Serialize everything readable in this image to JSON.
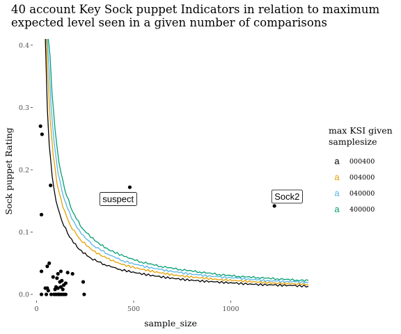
{
  "chart_data": {
    "type": "scatter",
    "title_lines": [
      "40 account Key Sock puppet Indicators in relation to maximum",
      "expected level seen in a given number of comparisons"
    ],
    "xlabel": "sample_size",
    "ylabel": "Sock puppet Rating",
    "xlim": [
      -20,
      1400
    ],
    "ylim": [
      -0.01,
      0.41
    ],
    "x_ticks": [
      0,
      500,
      1000
    ],
    "x_tick_labels": [
      "0",
      "500",
      "1000"
    ],
    "y_ticks": [
      0.0,
      0.1,
      0.2,
      0.3,
      0.4
    ],
    "y_tick_labels": [
      "0.0",
      "0.1",
      "0.2",
      "0.3",
      "0.4"
    ],
    "grid": false,
    "legend": {
      "title": "max KSI given samplesize",
      "position": "right",
      "key_glyph": "a",
      "entries": [
        {
          "label": "000400",
          "color": "#000000"
        },
        {
          "label": "004000",
          "color": "#E69F00"
        },
        {
          "label": "040000",
          "color": "#56B4E9"
        },
        {
          "label": "400000",
          "color": "#009E73"
        }
      ]
    },
    "points": [
      {
        "x": 20,
        "y": 0.27
      },
      {
        "x": 28,
        "y": 0.257
      },
      {
        "x": 72,
        "y": 0.175
      },
      {
        "x": 25,
        "y": 0.128
      },
      {
        "x": 25,
        "y": 0.037
      },
      {
        "x": 65,
        "y": 0.05
      },
      {
        "x": 55,
        "y": 0.045
      },
      {
        "x": 85,
        "y": 0.028
      },
      {
        "x": 105,
        "y": 0.026
      },
      {
        "x": 110,
        "y": 0.033
      },
      {
        "x": 125,
        "y": 0.037
      },
      {
        "x": 160,
        "y": 0.035
      },
      {
        "x": 185,
        "y": 0.033
      },
      {
        "x": 120,
        "y": 0.02
      },
      {
        "x": 130,
        "y": 0.022
      },
      {
        "x": 140,
        "y": 0.015
      },
      {
        "x": 150,
        "y": 0.018
      },
      {
        "x": 100,
        "y": 0.012
      },
      {
        "x": 95,
        "y": 0.008
      },
      {
        "x": 110,
        "y": 0.01
      },
      {
        "x": 125,
        "y": 0.012
      },
      {
        "x": 135,
        "y": 0.008
      },
      {
        "x": 45,
        "y": 0.01
      },
      {
        "x": 55,
        "y": 0.01
      },
      {
        "x": 60,
        "y": 0.006
      },
      {
        "x": 240,
        "y": 0.02
      },
      {
        "x": 25,
        "y": 0.0
      },
      {
        "x": 50,
        "y": 0.0
      },
      {
        "x": 75,
        "y": 0.0
      },
      {
        "x": 90,
        "y": 0.0
      },
      {
        "x": 100,
        "y": 0.0
      },
      {
        "x": 110,
        "y": 0.0
      },
      {
        "x": 115,
        "y": 0.0
      },
      {
        "x": 120,
        "y": 0.0
      },
      {
        "x": 130,
        "y": 0.0
      },
      {
        "x": 140,
        "y": 0.0
      },
      {
        "x": 150,
        "y": 0.0
      },
      {
        "x": 245,
        "y": 0.0
      },
      {
        "x": 480,
        "y": 0.172
      },
      {
        "x": 1225,
        "y": 0.142
      }
    ],
    "annotations": [
      {
        "text": "suspect",
        "x": 420,
        "y": 0.153
      },
      {
        "text": "Sock2",
        "x": 1290,
        "y": 0.157
      }
    ],
    "series": [
      {
        "name": "000400",
        "color": "#000000",
        "x": [
          45,
          55,
          65,
          80,
          100,
          130,
          170,
          220,
          280,
          350,
          430,
          520,
          620,
          720,
          820,
          920,
          1020,
          1120,
          1220,
          1320,
          1400
        ],
        "y": [
          0.41,
          0.3,
          0.24,
          0.19,
          0.15,
          0.118,
          0.092,
          0.072,
          0.058,
          0.048,
          0.04,
          0.034,
          0.029,
          0.025,
          0.022,
          0.02,
          0.018,
          0.016,
          0.015,
          0.014,
          0.013
        ]
      },
      {
        "name": "004000",
        "color": "#E69F00",
        "x": [
          50,
          60,
          70,
          85,
          105,
          135,
          175,
          225,
          290,
          360,
          440,
          530,
          630,
          730,
          830,
          930,
          1030,
          1130,
          1230,
          1330,
          1400
        ],
        "y": [
          0.41,
          0.34,
          0.28,
          0.225,
          0.178,
          0.14,
          0.11,
          0.088,
          0.07,
          0.058,
          0.048,
          0.041,
          0.035,
          0.03,
          0.027,
          0.024,
          0.022,
          0.02,
          0.018,
          0.017,
          0.016
        ]
      },
      {
        "name": "040000",
        "color": "#56B4E9",
        "x": [
          55,
          65,
          75,
          90,
          110,
          140,
          180,
          230,
          295,
          365,
          445,
          535,
          635,
          735,
          835,
          935,
          1035,
          1135,
          1235,
          1335,
          1400
        ],
        "y": [
          0.41,
          0.36,
          0.3,
          0.245,
          0.195,
          0.155,
          0.122,
          0.097,
          0.078,
          0.065,
          0.054,
          0.046,
          0.04,
          0.035,
          0.031,
          0.028,
          0.026,
          0.023,
          0.021,
          0.02,
          0.019
        ]
      },
      {
        "name": "400000",
        "color": "#009E73",
        "x": [
          60,
          70,
          80,
          95,
          115,
          145,
          185,
          235,
          300,
          370,
          450,
          540,
          640,
          740,
          840,
          940,
          1040,
          1140,
          1240,
          1340,
          1400
        ],
        "y": [
          0.41,
          0.38,
          0.32,
          0.265,
          0.212,
          0.168,
          0.133,
          0.106,
          0.086,
          0.072,
          0.061,
          0.052,
          0.045,
          0.04,
          0.036,
          0.032,
          0.029,
          0.027,
          0.025,
          0.023,
          0.022
        ]
      }
    ]
  }
}
